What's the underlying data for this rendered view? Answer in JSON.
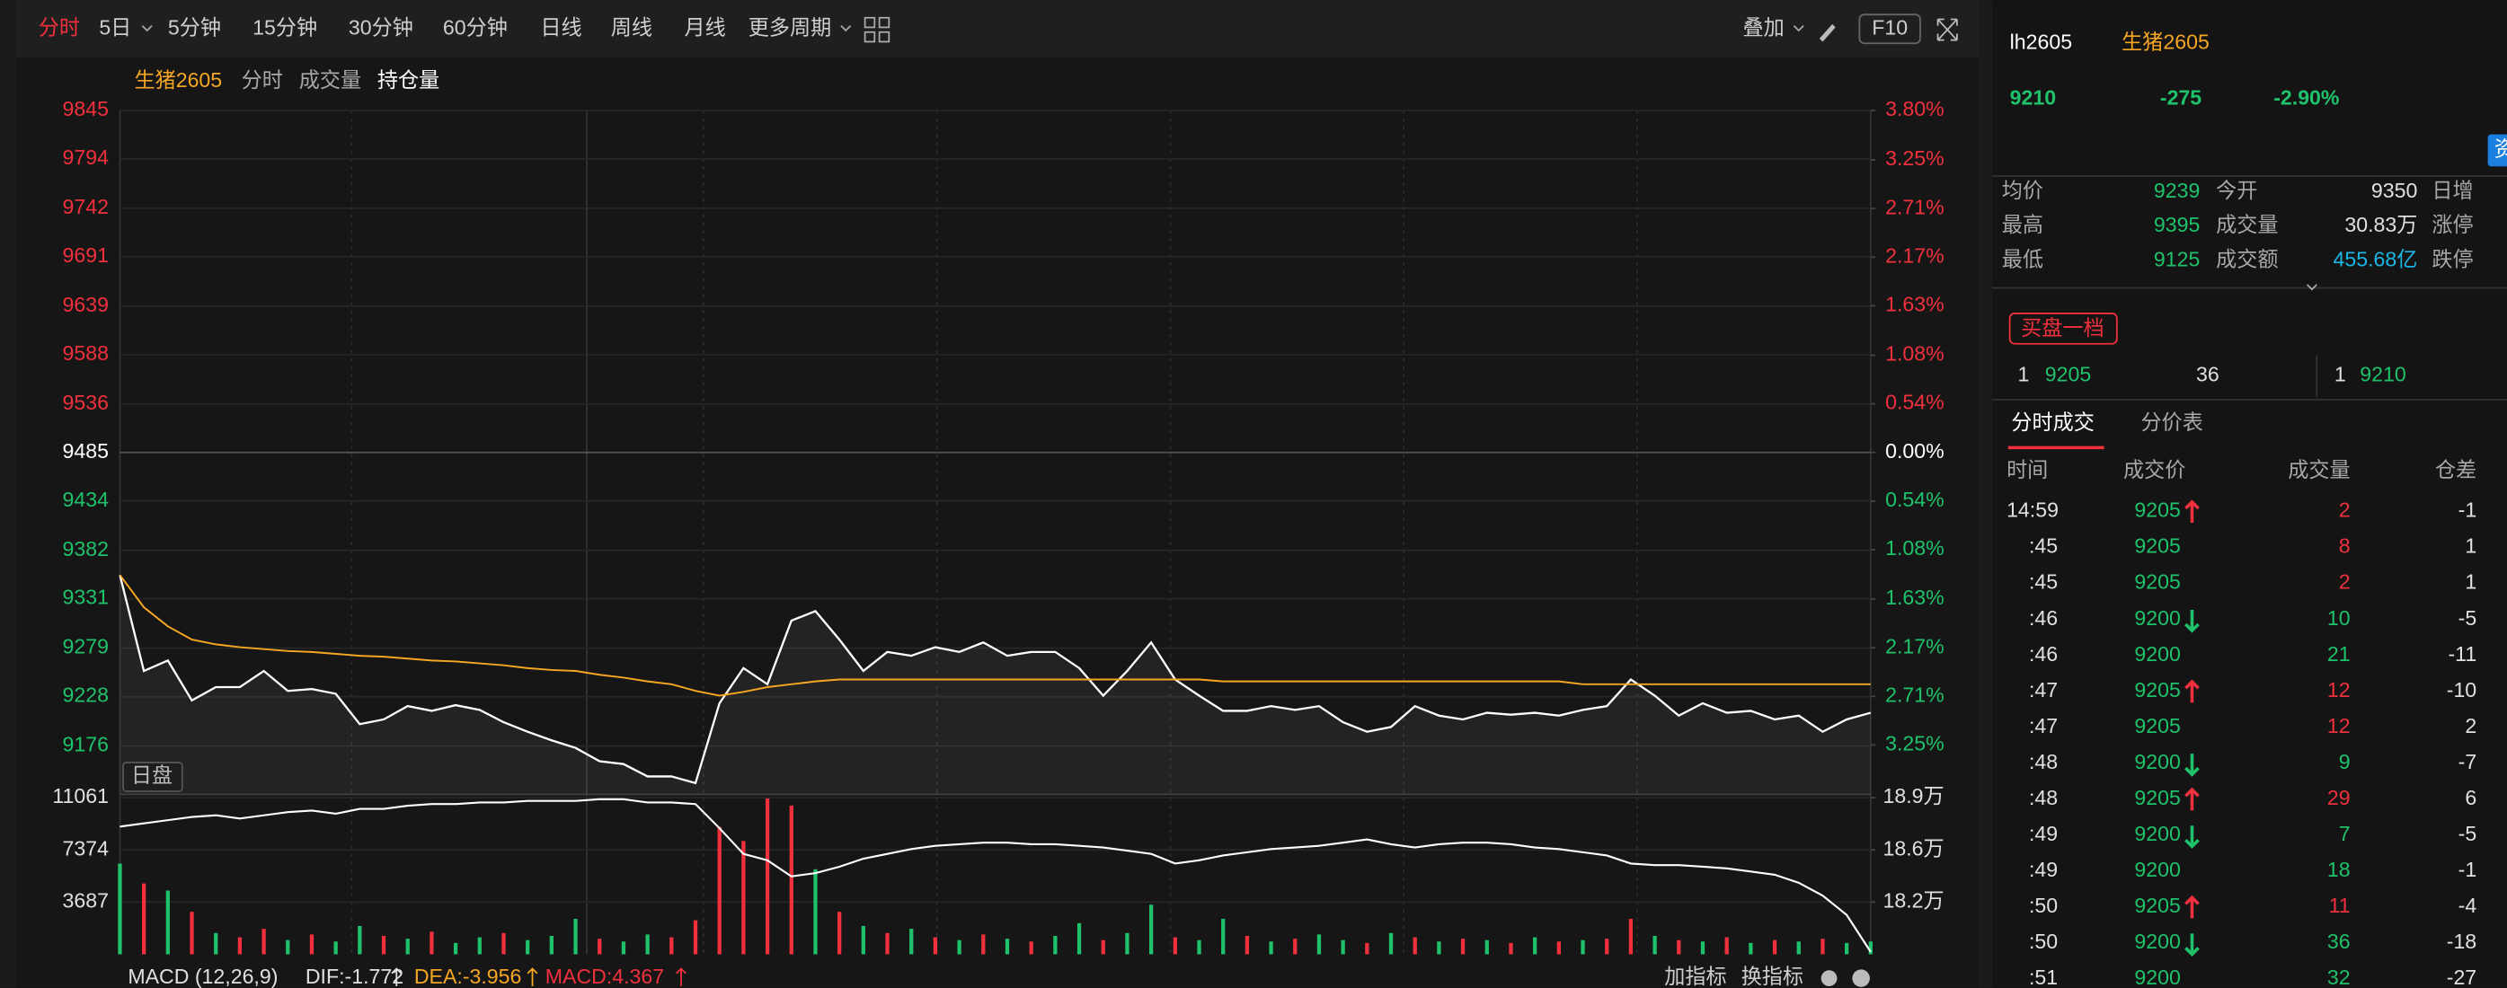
{
  "toolbar": {
    "periods": [
      "分时",
      "5日",
      "5分钟",
      "15分钟",
      "30分钟",
      "60分钟",
      "日线",
      "周线",
      "月线",
      "更多周期"
    ],
    "overlay": "叠加",
    "f10": "F10"
  },
  "legend": [
    "生猪2605",
    "分时",
    "成交量",
    "持仓量"
  ],
  "session": "日盘",
  "chart_data": [
    {
      "type": "line",
      "ylim": [
        9125,
        9845
      ],
      "yticks": [
        9845,
        9794,
        9742,
        9691,
        9639,
        9588,
        9536,
        9485,
        9434,
        9382,
        9331,
        9279,
        9228,
        9176
      ],
      "y2lim": [
        -3.8,
        3.8
      ],
      "y2ticks": [
        {
          "value": 3.8,
          "label": "3.80%"
        },
        {
          "value": 3.25,
          "label": "3.25%"
        },
        {
          "value": 2.71,
          "label": "2.71%"
        },
        {
          "value": 2.17,
          "label": "2.17%"
        },
        {
          "value": 1.63,
          "label": "1.63%"
        },
        {
          "value": 1.08,
          "label": "1.08%"
        },
        {
          "value": 0.54,
          "label": "0.54%"
        },
        {
          "value": 0,
          "label": "0.00%"
        },
        {
          "value": -0.54,
          "label": "0.54%"
        },
        {
          "value": -1.08,
          "label": "1.08%"
        },
        {
          "value": -1.63,
          "label": "1.63%"
        },
        {
          "value": -2.17,
          "label": "2.17%"
        },
        {
          "value": -2.71,
          "label": "2.71%"
        },
        {
          "value": -3.25,
          "label": "3.25%"
        }
      ],
      "grid": true,
      "series": [
        {
          "color": "#ffffff",
          "values": [
            9356,
            9255,
            9266,
            9224,
            9238,
            9238,
            9255,
            9234,
            9236,
            9231,
            9199,
            9204,
            9218,
            9213,
            9219,
            9214,
            9201,
            9191,
            9182,
            9174,
            9160,
            9157,
            9144,
            9144,
            9137,
            9221,
            9258,
            9241,
            9308,
            9318,
            9288,
            9255,
            9275,
            9271,
            9280,
            9275,
            9285,
            9271,
            9275,
            9275,
            9258,
            9229,
            9255,
            9285,
            9246,
            9229,
            9213,
            9213,
            9218,
            9214,
            9218,
            9201,
            9191,
            9196,
            9218,
            9208,
            9204,
            9211,
            9209,
            9211,
            9208,
            9214,
            9218,
            9246,
            9229,
            9208,
            9221,
            9211,
            9213,
            9204,
            9208,
            9191,
            9204,
            9211
          ]
        },
        {
          "color": "#f5a623",
          "values": [
            9356,
            9322,
            9302,
            9288,
            9283,
            9280,
            9278,
            9276,
            9275,
            9273,
            9271,
            9270,
            9268,
            9266,
            9265,
            9263,
            9261,
            9258,
            9256,
            9255,
            9251,
            9248,
            9244,
            9241,
            9234,
            9229,
            9233,
            9238,
            9241,
            9244,
            9246,
            9246,
            9246,
            9246,
            9246,
            9246,
            9246,
            9246,
            9246,
            9246,
            9246,
            9246,
            9246,
            9246,
            9246,
            9246,
            9244,
            9244,
            9244,
            9244,
            9244,
            9244,
            9244,
            9244,
            9244,
            9244,
            9244,
            9244,
            9244,
            9244,
            9244,
            9241,
            9241,
            9241,
            9241,
            9241,
            9241,
            9241,
            9241,
            9241,
            9241,
            9241,
            9241,
            9241
          ]
        }
      ]
    },
    {
      "type": "bar",
      "ylim": [
        0,
        11061
      ],
      "yticks": [
        11061,
        7374,
        3687
      ],
      "y2lim": [
        179100,
        189000
      ],
      "y2ticks": [
        {
          "value": 189000,
          "label": "18.9万"
        },
        {
          "value": 185700,
          "label": "18.6万"
        },
        {
          "value": 182400,
          "label": "18.2万"
        }
      ],
      "series": [
        {
          "type": "bar",
          "values": [
            6400,
            5000,
            4500,
            3000,
            1500,
            1200,
            1800,
            1000,
            1400,
            900,
            2000,
            1300,
            1100,
            1600,
            800,
            1200,
            1500,
            1000,
            1300,
            2500,
            1100,
            900,
            1400,
            1200,
            2400,
            9000,
            8000,
            11000,
            10500,
            6000,
            3000,
            2000,
            1500,
            1800,
            1200,
            1000,
            1400,
            1100,
            900,
            1300,
            2200,
            1000,
            1500,
            3500,
            1200,
            1000,
            2500,
            1300,
            900,
            1100,
            1400,
            1000,
            800,
            1500,
            1200,
            900,
            1100,
            1000,
            800,
            1200,
            900,
            1000,
            1100,
            2500,
            1300,
            1000,
            900,
            1200,
            800,
            1000,
            900,
            1100,
            800,
            900
          ],
          "colors": [
            "#1fc26b",
            "#f0313d",
            "#1fc26b",
            "#f0313d",
            "#1fc26b",
            "#f0313d",
            "#f0313d",
            "#1fc26b",
            "#f0313d",
            "#1fc26b",
            "#1fc26b",
            "#f0313d",
            "#1fc26b",
            "#f0313d",
            "#1fc26b",
            "#1fc26b",
            "#f0313d",
            "#1fc26b",
            "#1fc26b",
            "#1fc26b",
            "#f0313d",
            "#1fc26b",
            "#1fc26b",
            "#f0313d",
            "#f0313d",
            "#f0313d",
            "#f0313d",
            "#f0313d",
            "#f0313d",
            "#1fc26b",
            "#f0313d",
            "#1fc26b",
            "#f0313d",
            "#1fc26b",
            "#f0313d",
            "#1fc26b",
            "#f0313d",
            "#1fc26b",
            "#f0313d",
            "#1fc26b",
            "#1fc26b",
            "#f0313d",
            "#1fc26b",
            "#1fc26b",
            "#f0313d",
            "#1fc26b",
            "#1fc26b",
            "#f0313d",
            "#1fc26b",
            "#f0313d",
            "#1fc26b",
            "#1fc26b",
            "#f0313d",
            "#1fc26b",
            "#f0313d",
            "#1fc26b",
            "#f0313d",
            "#1fc26b",
            "#f0313d",
            "#1fc26b",
            "#f0313d",
            "#1fc26b",
            "#f0313d",
            "#f0313d",
            "#1fc26b",
            "#f0313d",
            "#1fc26b",
            "#f0313d",
            "#1fc26b",
            "#f0313d",
            "#1fc26b",
            "#f0313d",
            "#1fc26b",
            "#1fc26b"
          ]
        },
        {
          "type": "line",
          "axis": "y2",
          "color": "#ffffff",
          "values": [
            187172,
            187375,
            187578,
            187782,
            187883,
            187680,
            187883,
            188086,
            188187,
            187985,
            188289,
            188289,
            188492,
            188594,
            188594,
            188695,
            188695,
            188797,
            188797,
            188797,
            188898,
            188898,
            188695,
            188695,
            188594,
            187071,
            185446,
            185040,
            184025,
            184228,
            184634,
            185142,
            185446,
            185751,
            185954,
            186055,
            186157,
            186157,
            186055,
            186055,
            185954,
            185852,
            185649,
            185446,
            184837,
            185040,
            185345,
            185548,
            185751,
            185852,
            185954,
            186157,
            186360,
            186055,
            185852,
            186055,
            186157,
            186157,
            186055,
            185852,
            185751,
            185548,
            185345,
            184837,
            184736,
            184736,
            184634,
            184533,
            184330,
            184127,
            183619,
            182806,
            181588,
            179253
          ]
        }
      ]
    }
  ],
  "indicator": {
    "name": "MACD (12,26,9)",
    "dif": "DIF:-1.772",
    "dea": "DEA:-3.956",
    "macd": "MACD:4.367",
    "buttons": [
      "加指标",
      "换指标"
    ]
  },
  "quote": {
    "code": "lh2605",
    "name": "生猪2605",
    "price": 9210,
    "change": -275,
    "change_pct": "-2.90%"
  },
  "side_tab": "资",
  "stats": [
    [
      "均价",
      9239,
      "今开",
      9350,
      "日增"
    ],
    [
      "最高",
      9395,
      "成交量",
      "30.83万",
      "涨停"
    ],
    [
      "最低",
      9125,
      "成交额",
      "455.68亿",
      "跌停"
    ]
  ],
  "order_book": {
    "title": "买盘一档",
    "bid": {
      "level": 1,
      "price": 9205,
      "volume": 36
    },
    "ask": {
      "level": 1,
      "price": 9210
    }
  },
  "tabs": [
    "分时成交",
    "分价表"
  ],
  "trades": {
    "headers": [
      "时间",
      "成交价",
      "成交量",
      "仓差"
    ],
    "rows": [
      {
        "time": "14:59",
        "price": 9205,
        "volume": 2,
        "oi_change": -1,
        "side": "buy",
        "arrow": true
      },
      {
        "time": ":45",
        "price": 9205,
        "volume": 8,
        "oi_change": 1,
        "side": "buy",
        "arrow": false
      },
      {
        "time": ":45",
        "price": 9205,
        "volume": 2,
        "oi_change": 1,
        "side": "buy",
        "arrow": false
      },
      {
        "time": ":46",
        "price": 9200,
        "volume": 10,
        "oi_change": -5,
        "side": "sell",
        "arrow": true
      },
      {
        "time": ":46",
        "price": 9200,
        "volume": 21,
        "oi_change": -11,
        "side": "sell",
        "arrow": false
      },
      {
        "time": ":47",
        "price": 9205,
        "volume": 12,
        "oi_change": -10,
        "side": "buy",
        "arrow": true
      },
      {
        "time": ":47",
        "price": 9205,
        "volume": 12,
        "oi_change": 2,
        "side": "buy",
        "arrow": false
      },
      {
        "time": ":48",
        "price": 9200,
        "volume": 9,
        "oi_change": -7,
        "side": "sell",
        "arrow": true
      },
      {
        "time": ":48",
        "price": 9205,
        "volume": 29,
        "oi_change": 6,
        "side": "buy",
        "arrow": true
      },
      {
        "time": ":49",
        "price": 9200,
        "volume": 7,
        "oi_change": -5,
        "side": "sell",
        "arrow": true
      },
      {
        "time": ":49",
        "price": 9200,
        "volume": 18,
        "oi_change": -1,
        "side": "sell",
        "arrow": false
      },
      {
        "time": ":50",
        "price": 9205,
        "volume": 11,
        "oi_change": -4,
        "side": "buy",
        "arrow": true
      },
      {
        "time": ":50",
        "price": 9200,
        "volume": 36,
        "oi_change": -18,
        "side": "sell",
        "arrow": true
      },
      {
        "time": ":51",
        "price": 9200,
        "volume": 32,
        "oi_change": -27,
        "side": "sell",
        "arrow": false
      }
    ]
  }
}
